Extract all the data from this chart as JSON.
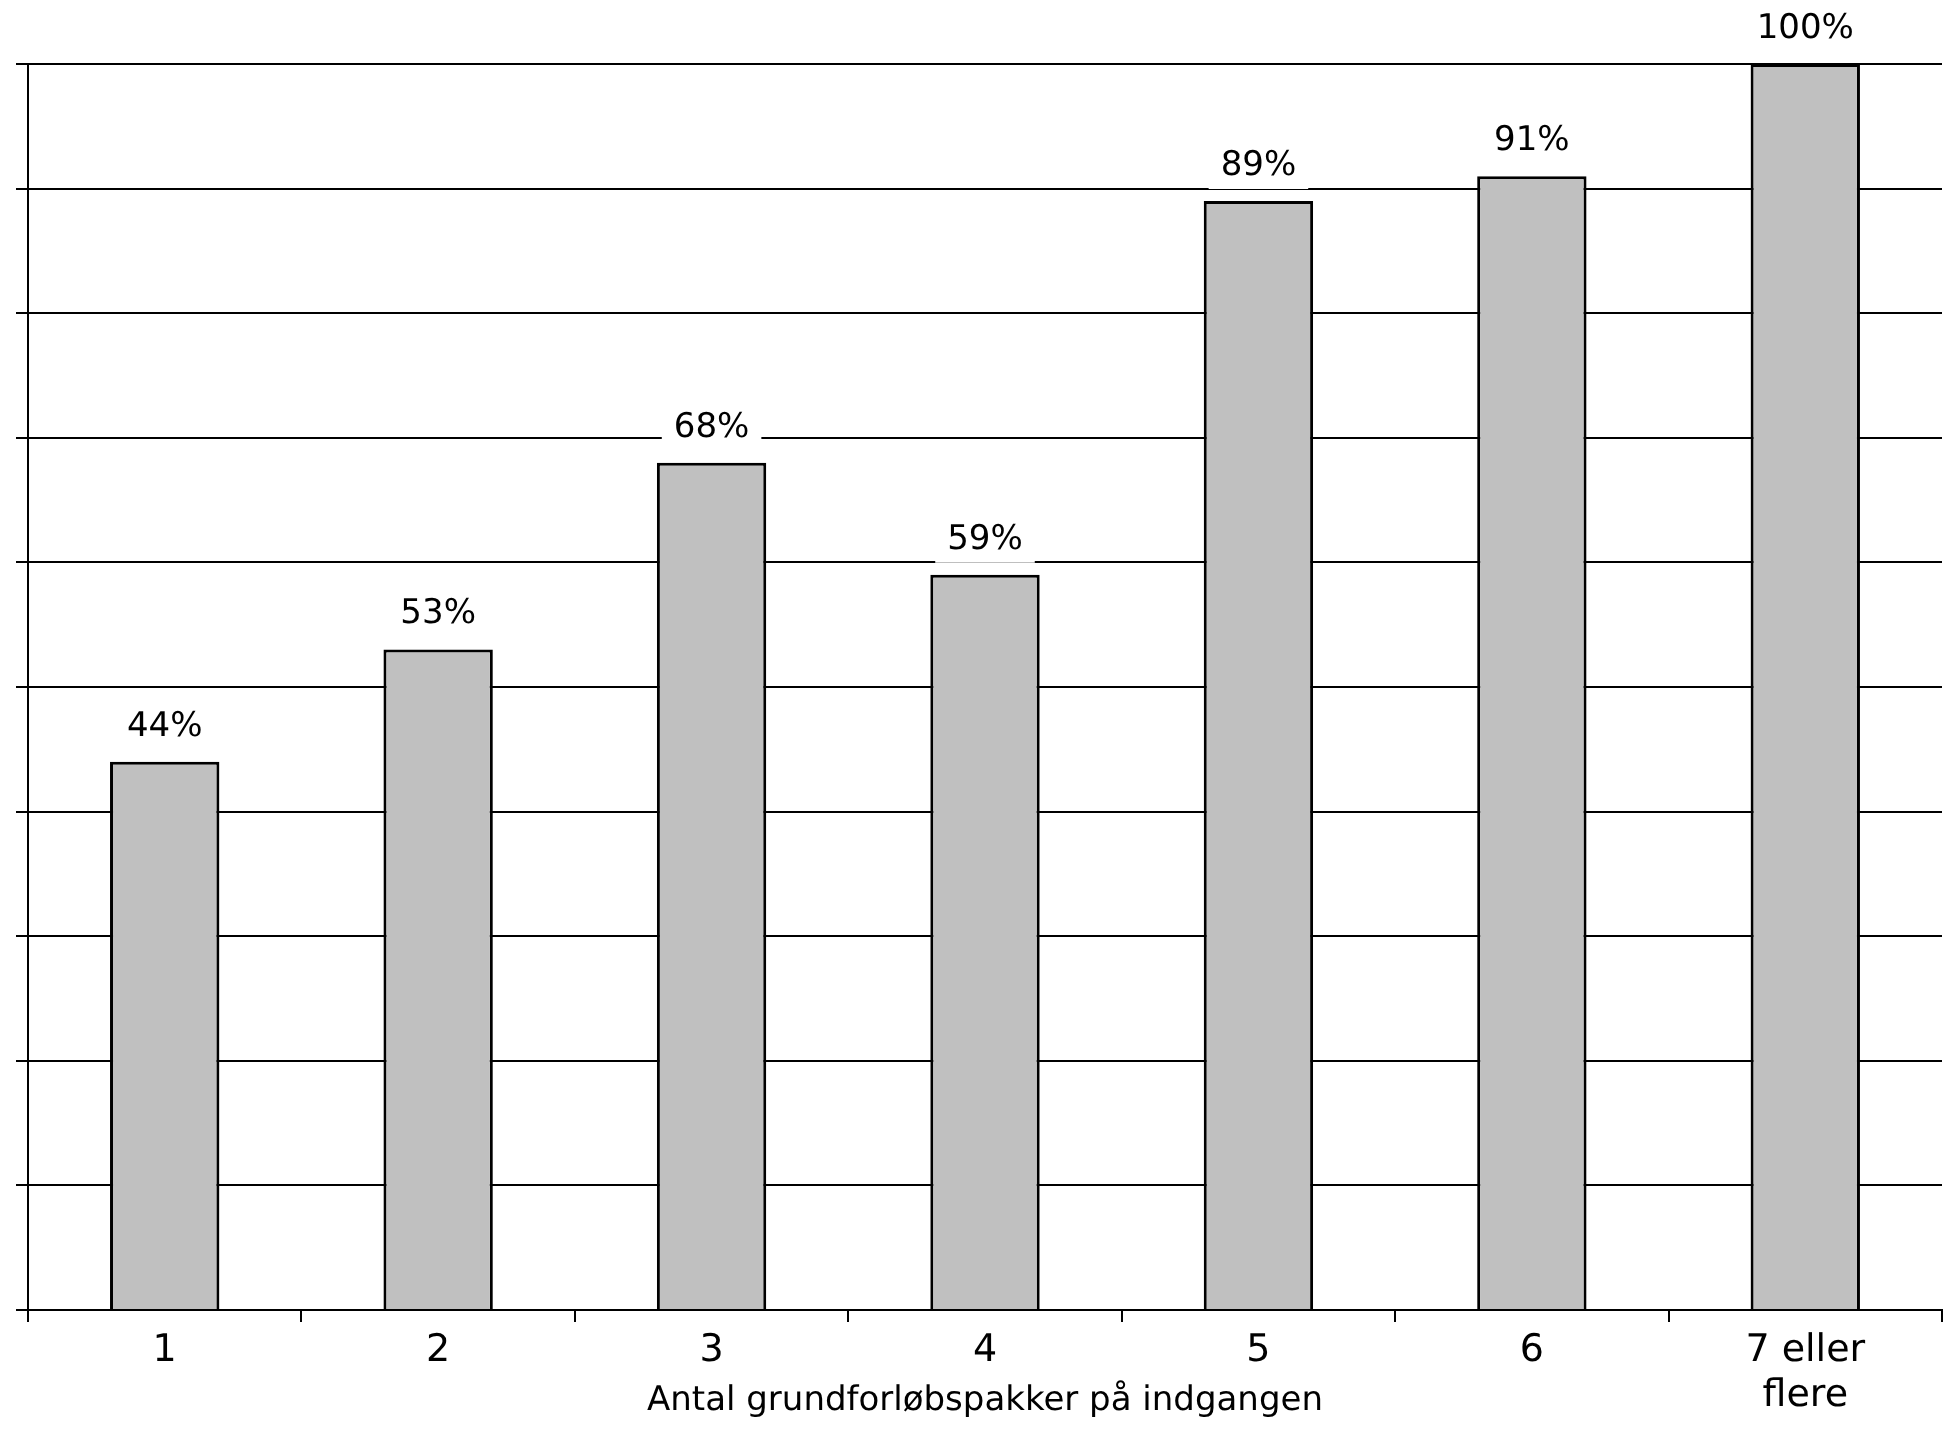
{
  "chart_data": {
    "type": "bar",
    "xlabel": "Antal grundforløbspakker på indgangen",
    "categories": [
      "1",
      "2",
      "3",
      "4",
      "5",
      "6",
      "7 eller flere"
    ],
    "values": [
      44,
      53,
      68,
      59,
      89,
      91,
      100
    ],
    "value_labels": [
      "44%",
      "53%",
      "68%",
      "59%",
      "89%",
      "91%",
      "100%"
    ],
    "color": "#c0c0c0",
    "ylim": [
      0,
      100
    ],
    "yticks": [
      {
        "value": 0,
        "label": null
      },
      {
        "value": 10,
        "label": null
      },
      {
        "value": 20,
        "label": null
      },
      {
        "value": 30,
        "label": null
      },
      {
        "value": 40,
        "label": null
      },
      {
        "value": 50,
        "label": null
      },
      {
        "value": 60,
        "label": null
      },
      {
        "value": 70,
        "label": null
      },
      {
        "value": 80,
        "label": null
      },
      {
        "value": 90,
        "label": null
      },
      {
        "value": 100,
        "label": null
      }
    ],
    "grid": "y",
    "tick_labels": "x",
    "legend": false
  }
}
